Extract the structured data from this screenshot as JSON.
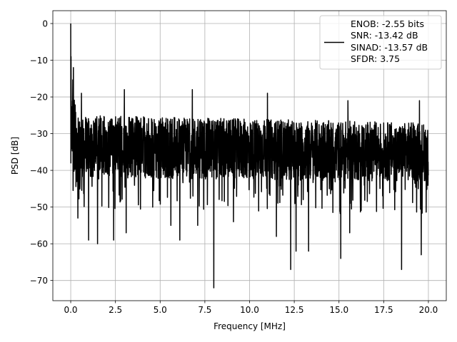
{
  "chart_data": {
    "type": "line",
    "title": "",
    "xlabel": "Frequency [MHz]",
    "ylabel": "PSD [dB]",
    "xlim": [
      -1.0,
      21.0
    ],
    "ylim": [
      -75.5,
      3.5
    ],
    "xticks": [
      0.0,
      2.5,
      5.0,
      7.5,
      10.0,
      12.5,
      15.0,
      17.5,
      20.0
    ],
    "xtick_labels": [
      "0.0",
      "2.5",
      "5.0",
      "7.5",
      "10.0",
      "12.5",
      "15.0",
      "17.5",
      "20.0"
    ],
    "yticks": [
      0,
      -10,
      -20,
      -30,
      -40,
      -50,
      -60,
      -70
    ],
    "ytick_labels": [
      "0",
      "−10",
      "−20",
      "−30",
      "−40",
      "−50",
      "−60",
      "−70"
    ],
    "grid": true,
    "legend_position": "top-right",
    "series": [
      {
        "name": "",
        "color": "#000000",
        "x_range": [
          0.0,
          20.0
        ],
        "peak": {
          "x": 0.0,
          "y": 0.0
        },
        "start_band": [
          -38,
          -5
        ],
        "noise_band_mid": [
          -42,
          -25
        ],
        "noise_band_end": [
          -43,
          -27
        ],
        "minima": [
          {
            "x": 0.4,
            "y": -53
          },
          {
            "x": 1.0,
            "y": -59
          },
          {
            "x": 1.5,
            "y": -60
          },
          {
            "x": 2.4,
            "y": -59
          },
          {
            "x": 3.1,
            "y": -57
          },
          {
            "x": 5.6,
            "y": -55
          },
          {
            "x": 6.1,
            "y": -59
          },
          {
            "x": 7.1,
            "y": -55
          },
          {
            "x": 8.0,
            "y": -72
          },
          {
            "x": 9.1,
            "y": -54
          },
          {
            "x": 11.5,
            "y": -58
          },
          {
            "x": 12.3,
            "y": -67
          },
          {
            "x": 12.6,
            "y": -62
          },
          {
            "x": 13.3,
            "y": -62
          },
          {
            "x": 15.1,
            "y": -64
          },
          {
            "x": 15.6,
            "y": -57
          },
          {
            "x": 18.5,
            "y": -67
          },
          {
            "x": 19.6,
            "y": -63
          }
        ],
        "maxima": [
          {
            "x": 0.15,
            "y": -12
          },
          {
            "x": 0.6,
            "y": -19
          },
          {
            "x": 3.0,
            "y": -18
          },
          {
            "x": 6.8,
            "y": -18
          },
          {
            "x": 11.0,
            "y": -19
          },
          {
            "x": 15.5,
            "y": -21
          },
          {
            "x": 19.5,
            "y": -21
          }
        ]
      }
    ],
    "legend_lines": [
      "ENOB: -2.55 bits",
      "SNR: -13.42 dB",
      "SINAD: -13.57 dB",
      "SFDR: 3.75"
    ]
  }
}
